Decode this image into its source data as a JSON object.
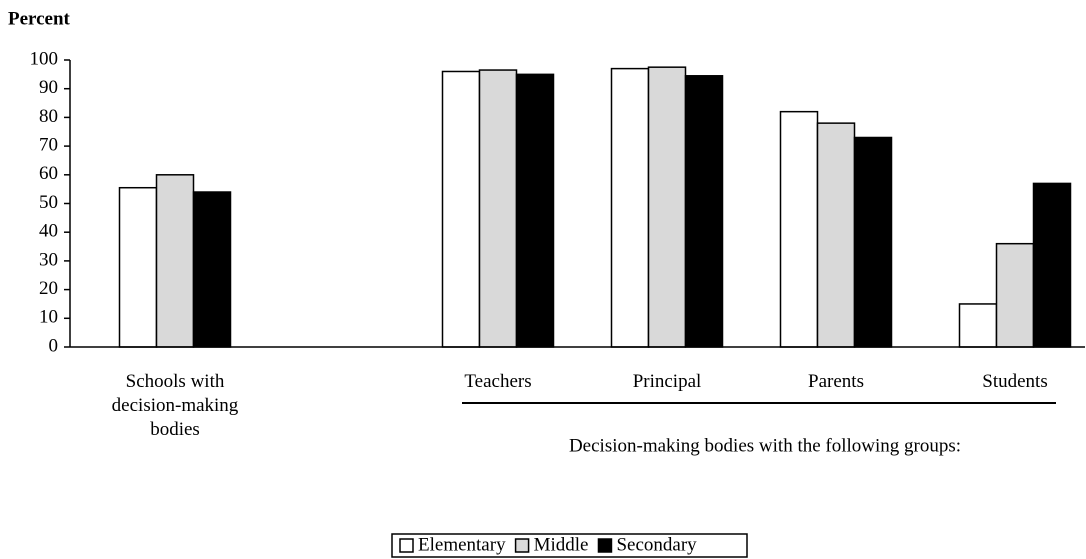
{
  "chart_data": {
    "type": "bar",
    "title": "Percent",
    "categories": [
      "Schools with decision-making bodies",
      "Teachers",
      "Principal",
      "Parents",
      "Students"
    ],
    "annotation": "Decision-making bodies with the following groups:",
    "series": [
      {
        "name": "Elementary",
        "color": "#ffffff",
        "values": [
          55.5,
          96,
          97,
          82,
          15
        ]
      },
      {
        "name": "Middle",
        "color": "#d9d9d9",
        "values": [
          60,
          96.5,
          97.5,
          78,
          36
        ]
      },
      {
        "name": "Secondary",
        "color": "#000000",
        "values": [
          54,
          95,
          94.5,
          73,
          57
        ]
      }
    ],
    "ylim": [
      0,
      100
    ],
    "yticks": [
      0,
      10,
      20,
      30,
      40,
      50,
      60,
      70,
      80,
      90,
      100
    ],
    "grid": false,
    "legend": "bottom"
  }
}
